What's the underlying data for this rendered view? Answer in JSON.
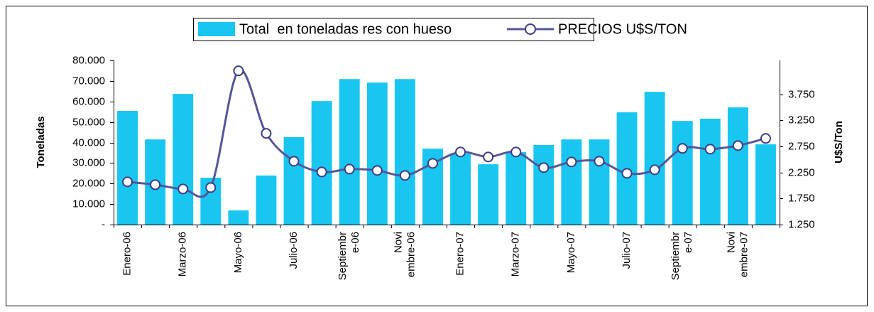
{
  "chart_data": {
    "type": "bar",
    "categories": [
      "Enero-06",
      null,
      "Marzo-06",
      null,
      "Mayo-06",
      null,
      "Julio-06",
      null,
      "Septiembr e-06",
      null,
      "Novi embre-06",
      null,
      "Enero-07",
      null,
      "Marzo-07",
      null,
      "Mayo-07",
      null,
      "Julio-07",
      null,
      "Septiembr e-07",
      null,
      "Novi embre-07",
      null
    ],
    "series": [
      {
        "name": "Total  en toneladas res con hueso",
        "type": "bar",
        "color": "#19c6f0",
        "values": [
          55400,
          41500,
          63700,
          22800,
          6900,
          23900,
          42600,
          60200,
          70900,
          69200,
          70900,
          37000,
          34600,
          29400,
          35300,
          38800,
          41500,
          41500,
          54700,
          64700,
          50500,
          51600,
          57100,
          39100
        ]
      },
      {
        "name": "PRECIOS U$S/TON",
        "type": "line",
        "axis": "y2",
        "color": "#55559a",
        "values": [
          2070,
          2015,
          1933,
          1960,
          4200,
          3000,
          2466,
          2260,
          2315,
          2288,
          2193,
          2425,
          2643,
          2548,
          2643,
          2343,
          2452,
          2466,
          2234,
          2302,
          2712,
          2698,
          2766,
          2903
        ]
      }
    ],
    "ylabel": "Toneladas",
    "y2label": "U$S/Ton",
    "ylim": [
      0,
      80000
    ],
    "yticks": [
      {
        "value": 0,
        "label": "-"
      },
      {
        "value": 10000,
        "label": "10.000"
      },
      {
        "value": 20000,
        "label": "20.000"
      },
      {
        "value": 30000,
        "label": "30.000"
      },
      {
        "value": 40000,
        "label": "40.000"
      },
      {
        "value": 50000,
        "label": "50.000"
      },
      {
        "value": 60000,
        "label": "60.000"
      },
      {
        "value": 70000,
        "label": "70.000"
      },
      {
        "value": 80000,
        "label": "80.000"
      }
    ],
    "y2lim": [
      1250,
      4400
    ],
    "y2ticks": [
      {
        "value": 1250,
        "label": "1.250"
      },
      {
        "value": 1750,
        "label": "1.750"
      },
      {
        "value": 2250,
        "label": "2.250"
      },
      {
        "value": 2750,
        "label": "2.750"
      },
      {
        "value": 3250,
        "label": "3.250"
      },
      {
        "value": 3750,
        "label": "3.750"
      }
    ],
    "legend": "top",
    "grid": false
  }
}
